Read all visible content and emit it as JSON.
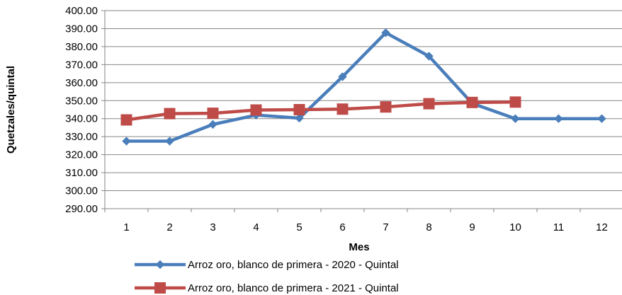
{
  "chart_data": {
    "type": "line",
    "categories": [
      "1",
      "2",
      "3",
      "4",
      "5",
      "6",
      "7",
      "8",
      "9",
      "10",
      "11",
      "12"
    ],
    "series": [
      {
        "name": "Arroz oro, blanco de primera - 2020 - Quintal",
        "color": "#4a7ebb",
        "marker": "diamond",
        "values": [
          327.5,
          327.5,
          336.8,
          342.0,
          340.3,
          363.3,
          387.7,
          374.7,
          348.5,
          340.0,
          340.0,
          340.0
        ]
      },
      {
        "name": "Arroz oro, blanco de primera - 2021 - Quintal",
        "color": "#be4b48",
        "marker": "square",
        "values": [
          339.3,
          342.8,
          343.0,
          344.8,
          345.0,
          345.3,
          346.5,
          348.3,
          349.0,
          349.2,
          null,
          null
        ]
      }
    ],
    "xlabel": "Mes",
    "ylabel": "Quetzales/quintal",
    "ylim": [
      290,
      400
    ],
    "yticks": [
      290,
      300,
      310,
      320,
      330,
      340,
      350,
      360,
      370,
      380,
      390,
      400
    ],
    "ytick_labels": [
      "290.00",
      "300.00",
      "310.00",
      "320.00",
      "330.00",
      "340.00",
      "350.00",
      "360.00",
      "370.00",
      "380.00",
      "390.00",
      "400.00"
    ],
    "grid": true,
    "legend_position": "bottom"
  }
}
